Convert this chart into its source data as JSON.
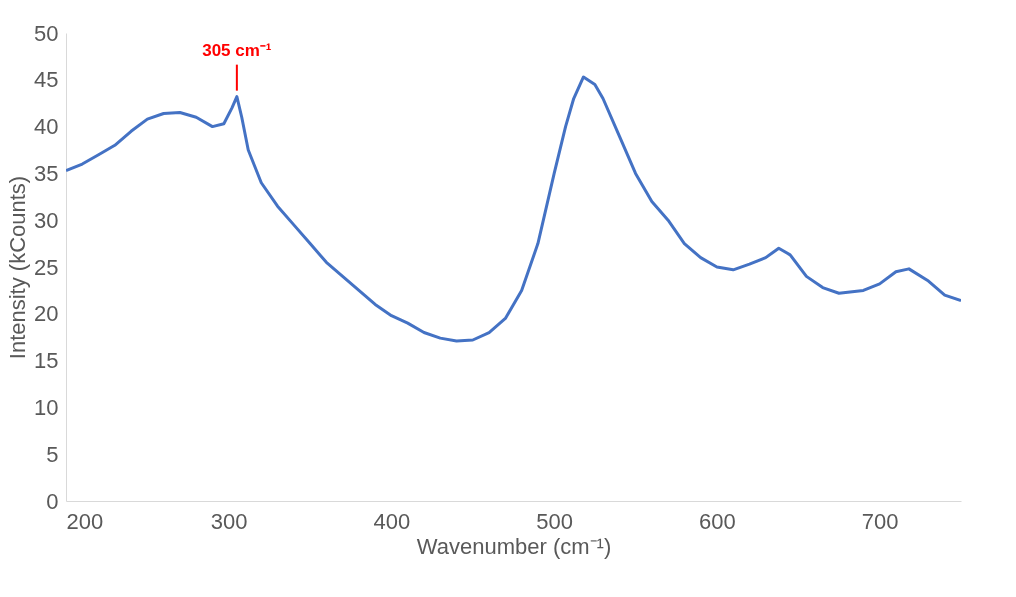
{
  "chart_data": {
    "type": "line",
    "xlabel": "Wavenumber (cm⁻¹)",
    "ylabel": "Intensity (kCounts)",
    "x": [
      200,
      210,
      220,
      230,
      240,
      250,
      260,
      270,
      280,
      290,
      297,
      302,
      305,
      308,
      312,
      320,
      330,
      340,
      350,
      360,
      370,
      380,
      390,
      400,
      410,
      420,
      430,
      440,
      450,
      460,
      470,
      480,
      490,
      500,
      507,
      512,
      518,
      525,
      530,
      540,
      550,
      560,
      570,
      580,
      590,
      600,
      610,
      620,
      630,
      638,
      645,
      655,
      665,
      675,
      690,
      700,
      710,
      718,
      730,
      740,
      750
    ],
    "series": [
      {
        "color": "#4472c4",
        "values": [
          35.3,
          36,
          37,
          38,
          39.5,
          40.8,
          41.4,
          41.5,
          41,
          40,
          40.3,
          42,
          43.2,
          41,
          37.5,
          34,
          31.5,
          29.5,
          27.5,
          25.5,
          24,
          22.5,
          21,
          19.8,
          19,
          18,
          17.4,
          17.1,
          17.2,
          18,
          19.5,
          22.5,
          27.5,
          35,
          40,
          43,
          45.3,
          44.5,
          43,
          39,
          35,
          32,
          30,
          27.5,
          26,
          25,
          24.7,
          25.3,
          26,
          27,
          26.3,
          24,
          22.8,
          22.2,
          22.5,
          23.2,
          24.5,
          24.8,
          23.5,
          22,
          21.4
        ]
      }
    ],
    "xlim": [
      200,
      750
    ],
    "xticks": [
      200,
      300,
      400,
      500,
      600,
      700
    ],
    "ylim": [
      0,
      50
    ],
    "yticks": [
      0,
      5,
      10,
      15,
      20,
      25,
      30,
      35,
      40,
      45,
      50
    ],
    "grid": false,
    "marker": "none",
    "line_style": "solid",
    "annotations": [
      {
        "text": "305 cm⁻¹",
        "x": 305,
        "y": 43.2
      }
    ]
  }
}
